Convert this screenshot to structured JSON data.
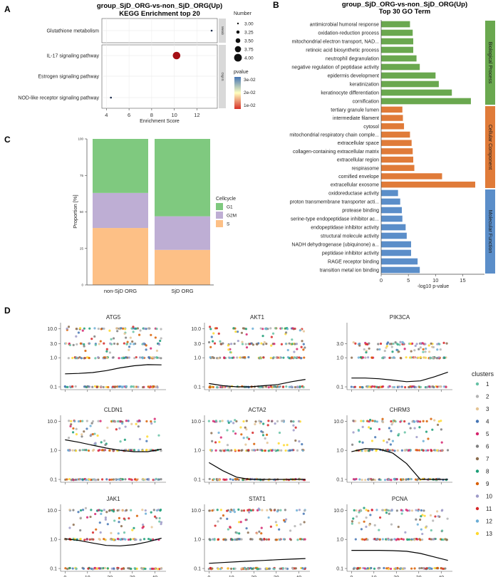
{
  "chart_data": [
    {
      "panel": "A",
      "type": "scatter",
      "title": "group_SjD_ORG-vs-non_SjD_ORG(Up)",
      "subtitle": "KEGG Enrichment top 20",
      "xlabel": "Enrichment Score",
      "xlim": [
        3.6,
        13.8
      ],
      "xticks": [
        "4",
        "6",
        "8",
        "10",
        "12"
      ],
      "groups": [
        {
          "name": "Metab",
          "pathways": [
            "Glutathione metabolism"
          ]
        },
        {
          "name": "OrgnS",
          "pathways": [
            "IL-17 signaling pathway",
            "Estrogen signaling pathway",
            "NOD-like receptor signaling pathway"
          ]
        }
      ],
      "points": [
        {
          "pathway": "Glutathione metabolism",
          "x": 13.3,
          "number": 3.0,
          "pvalue": 0.03
        },
        {
          "pathway": "IL-17 signaling pathway",
          "x": 10.2,
          "number": 4.0,
          "pvalue": 0.01
        },
        {
          "pathway": "NOD-like receptor signaling pathway",
          "x": 4.4,
          "number": 3.0,
          "pvalue": 0.03
        }
      ],
      "size_legend": {
        "title": "Number",
        "labels": [
          "3.00",
          "3.25",
          "3.50",
          "3.75",
          "4.00"
        ]
      },
      "color_legend": {
        "title": "pvalue",
        "labels": [
          "3e-02",
          "2e-02",
          "1e-02"
        ],
        "colors": [
          "#4575b4",
          "#ffffbf",
          "#d73027"
        ]
      }
    },
    {
      "panel": "B",
      "type": "bar",
      "title": "group_SjD_ORG-vs-non_SjD_ORG(Up)",
      "subtitle": "Top 30 GO Term",
      "xlabel": "-log10 p-value",
      "xlim": [
        0,
        19
      ],
      "xticks": [
        "0",
        "5",
        "10",
        "15"
      ],
      "series": [
        {
          "name": "Biological Process",
          "color": "#6aa84f",
          "terms": [
            "antimicrobial humoral response",
            "oxidation-reduction process",
            "mitochondrial electron transport, NAD...",
            "retinoic acid biosynthetic process",
            "neutrophil degranulation",
            "negative regulation of peptidase activity",
            "epidermis development",
            "keratinization",
            "keratinocyte differentiation",
            "cornification"
          ],
          "values": [
            5.3,
            5.8,
            5.9,
            5.9,
            6.5,
            7.1,
            10.0,
            10.6,
            13.0,
            16.5
          ]
        },
        {
          "name": "Cellular Component",
          "color": "#e07b39",
          "terms": [
            "tertiary granule lumen",
            "intermediate filament",
            "cytosol",
            "mitochondrial respiratory chain comple...",
            "extracellular space",
            "collagen-containing extracellular matrix",
            "extracellular region",
            "respirasome",
            "cornified envelope",
            "extracellular exosome"
          ],
          "values": [
            3.9,
            4.0,
            4.2,
            5.3,
            5.6,
            5.8,
            5.9,
            6.1,
            11.2,
            17.3
          ]
        },
        {
          "name": "Molecular Function",
          "color": "#5b8ec9",
          "terms": [
            "oxidoreductase activity",
            "proton transmembrane transporter acti...",
            "protease binding",
            "serine-type endopeptidase inhibitor ac...",
            "endopeptidase inhibitor activity",
            "structural molecule activity",
            "NADH dehydrogenase (ubiquinone) a...",
            "peptidase inhibitor activity",
            "RAGE receptor binding",
            "transition metal ion binding"
          ],
          "values": [
            3.1,
            3.5,
            3.8,
            3.9,
            4.5,
            4.7,
            5.5,
            5.5,
            6.7,
            7.1
          ]
        }
      ]
    },
    {
      "panel": "C",
      "type": "bar",
      "stacked": true,
      "ylabel": "Proportion [%]",
      "ylim": [
        0,
        100
      ],
      "yticks": [
        "0",
        "25",
        "50",
        "75",
        "100"
      ],
      "categories": [
        "non-SjD ORG",
        "SjD ORG"
      ],
      "legend_title": "Cellcycle",
      "series": [
        {
          "name": "S",
          "color": "#fdc086",
          "values": [
            39,
            24
          ]
        },
        {
          "name": "G2M",
          "color": "#beaed4",
          "values": [
            24,
            23
          ]
        },
        {
          "name": "G1",
          "color": "#7fc97f",
          "values": [
            37,
            53
          ]
        }
      ]
    },
    {
      "panel": "D",
      "type": "scatter",
      "xlim": [
        -2,
        45
      ],
      "xticks": [
        "0",
        "10",
        "20",
        "30",
        "40"
      ],
      "legend_title": "clusters",
      "clusters": [
        "1",
        "2",
        "3",
        "4",
        "5",
        "6",
        "7",
        "8",
        "9",
        "10",
        "11",
        "12",
        "13"
      ],
      "cluster_colors": [
        "#66c2a5",
        "#b3b3b3",
        "#e5c494",
        "#4575b4",
        "#d6246e",
        "#7f7f7f",
        "#8c6d4f",
        "#1b9e77",
        "#d95f02",
        "#9e9ac8",
        "#d62728",
        "#6baed6",
        "#ffd92f"
      ],
      "genes": [
        {
          "name": "ATG5",
          "yticks": [
            "0.1",
            "1.0",
            "3.0",
            "10.0"
          ],
          "curve": [
            0.28,
            0.29,
            0.31,
            0.36,
            0.45,
            0.53,
            0.58,
            0.57
          ]
        },
        {
          "name": "AKT1",
          "yticks": [
            "0.1",
            "1.0",
            "3.0",
            "10.0"
          ],
          "curve": [
            0.13,
            0.11,
            0.1,
            0.1,
            0.11,
            0.12,
            0.15,
            0.18
          ]
        },
        {
          "name": "PIK3CA",
          "yticks": [
            "0.1",
            "1.0",
            "3.0"
          ],
          "curve": [
            0.2,
            0.2,
            0.19,
            0.17,
            0.15,
            0.16,
            0.22,
            0.32
          ]
        },
        {
          "name": "CLDN1",
          "yticks": [
            "0.1",
            "1.0",
            "10.0"
          ],
          "curve": [
            2.3,
            1.9,
            1.5,
            1.2,
            1.0,
            0.9,
            0.9,
            1.1
          ]
        },
        {
          "name": "ACTA2",
          "yticks": [
            "0.1",
            "1.0",
            "10.0"
          ],
          "curve": [
            0.38,
            0.2,
            0.12,
            0.1,
            0.1,
            0.1,
            0.1,
            0.1
          ]
        },
        {
          "name": "CHRM3",
          "yticks": [
            "0.1",
            "1.0",
            "10.0"
          ],
          "curve": [
            0.9,
            1.15,
            1.1,
            0.8,
            0.35,
            0.1,
            0.1,
            0.1
          ]
        },
        {
          "name": "JAK1",
          "yticks": [
            "0.1",
            "1.0",
            "10.0"
          ],
          "curve": [
            1.05,
            0.92,
            0.75,
            0.62,
            0.6,
            0.66,
            0.82,
            1.1
          ]
        },
        {
          "name": "STAT1",
          "yticks": [
            "0.1",
            "1.0",
            "10.0"
          ],
          "curve": [
            0.15,
            0.16,
            0.17,
            0.18,
            0.19,
            0.2,
            0.21,
            0.22
          ]
        },
        {
          "name": "PCNA",
          "yticks": [
            "0.1",
            "1.0",
            "10.0"
          ],
          "curve": [
            0.42,
            0.42,
            0.42,
            0.41,
            0.39,
            0.33,
            0.25,
            0.19
          ]
        }
      ]
    }
  ],
  "panel_labels": [
    "A",
    "B",
    "C",
    "D"
  ]
}
